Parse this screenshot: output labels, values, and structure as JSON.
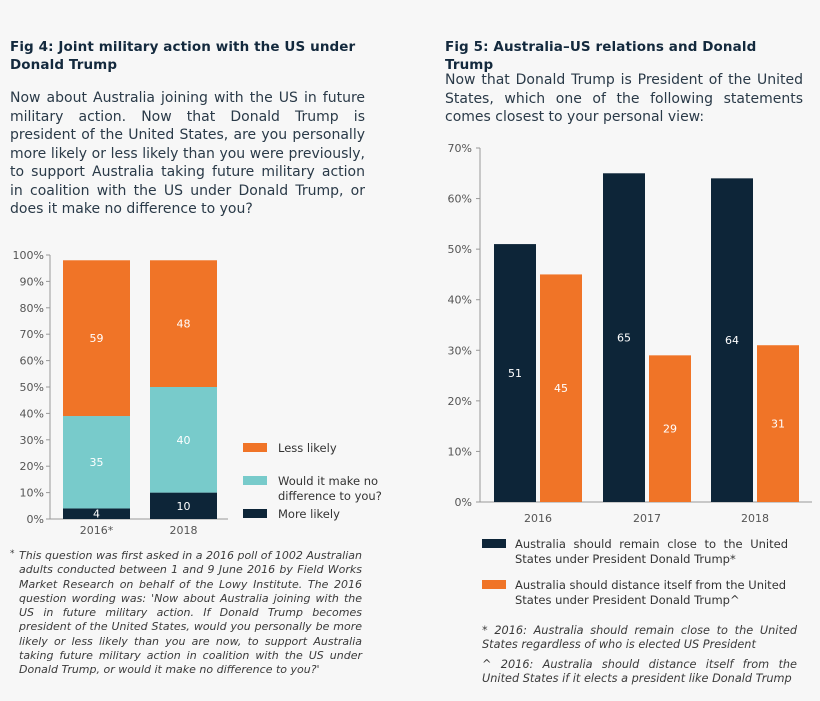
{
  "colors": {
    "dark": "#0d2538",
    "orange": "#f07427",
    "teal": "#78cbcb",
    "background": "#f7f7f7"
  },
  "fig4": {
    "title": "Fig 4: Joint military action with the US under Donald Trump",
    "question": "Now about Australia joining with the US in future military action. Now that Donald Trump is president of the United States, are you personally more likely or less likely than you were previously, to support Australia taking future military action in coalition with the US under Donald Trump, or does it make no difference to you?",
    "footnote_marker": "*",
    "footnote": "This question was first asked in a 2016 poll of 1002 Australian adults conducted between 1 and 9 June 2016 by Field Works Market Research on behalf of the Lowy Institute. The 2016 question wording was: 'Now about Australia joining with the US in future military action. If Donald Trump becomes president of the United States, would you personally be more likely or less likely than you are now, to support Australia taking future military action in coalition with the US under Donald Trump, or would it make no difference to you?'"
  },
  "fig5": {
    "title": "Fig 5: Australia–US relations and Donald Trump",
    "question": "Now that Donald Trump is President of the United States, which one of the following statements comes closest to your personal view:",
    "notes": [
      "* 2016: Australia should remain close to the United States regardless of who is elected US President",
      "^ 2016: Australia should distance itself from the United States if it elects a president like Donald Trump"
    ]
  },
  "chart_data": [
    {
      "type": "bar",
      "stacked": true,
      "categories": [
        "2016*",
        "2018"
      ],
      "series": [
        {
          "name": "More likely",
          "values": [
            4,
            10
          ],
          "color": "#0d2538"
        },
        {
          "name": "Would it make no difference to you?",
          "values": [
            35,
            40
          ],
          "color": "#78cbcb"
        },
        {
          "name": "Less likely",
          "values": [
            59,
            48
          ],
          "color": "#f07427"
        }
      ],
      "ylim": [
        0,
        100
      ],
      "yticks": [
        "0%",
        "10%",
        "20%",
        "30%",
        "40%",
        "50%",
        "60%",
        "70%",
        "80%",
        "90%",
        "100%"
      ],
      "legend": [
        "Less likely",
        "Would it make no difference to you?",
        "More likely"
      ],
      "legend_position": "right",
      "grid": false
    },
    {
      "type": "bar",
      "stacked": false,
      "categories": [
        "2016",
        "2017",
        "2018"
      ],
      "series": [
        {
          "name": "Australia should remain close to the United States under President Donald Trump*",
          "values": [
            51,
            65,
            64
          ],
          "color": "#0d2538"
        },
        {
          "name": "Australia should distance itself from the United States under President Donald Trump^",
          "values": [
            45,
            29,
            31
          ],
          "color": "#f07427"
        }
      ],
      "ylim": [
        0,
        70
      ],
      "yticks": [
        "0%",
        "10%",
        "20%",
        "30%",
        "40%",
        "50%",
        "60%",
        "70%"
      ],
      "legend_position": "bottom",
      "grid": false
    }
  ]
}
